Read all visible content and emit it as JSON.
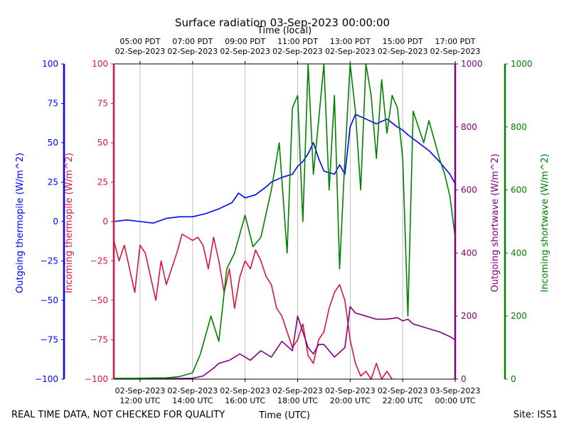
{
  "chart_data": {
    "type": "line",
    "title": "Surface radiation 03-Sep-2023 00:00:00",
    "top_axis_label": "Time (local)",
    "xlabel": "Time (UTC)",
    "footer_left": "REAL TIME DATA, NOT CHECKED FOR QUALITY",
    "footer_right": "Site: ISS1",
    "x_range_hours_utc": [
      11,
      24
    ],
    "x_ticks_bottom": [
      {
        "hour": 12,
        "line1": "02-Sep-2023",
        "line2": "12:00 UTC"
      },
      {
        "hour": 14,
        "line1": "02-Sep-2023",
        "line2": "14:00 UTC"
      },
      {
        "hour": 16,
        "line1": "02-Sep-2023",
        "line2": "16:00 UTC"
      },
      {
        "hour": 18,
        "line1": "02-Sep-2023",
        "line2": "18:00 UTC"
      },
      {
        "hour": 20,
        "line1": "02-Sep-2023",
        "line2": "20:00 UTC"
      },
      {
        "hour": 22,
        "line1": "02-Sep-2023",
        "line2": "22:00 UTC"
      },
      {
        "hour": 24,
        "line1": "03-Sep-2023",
        "line2": "00:00 UTC"
      }
    ],
    "x_ticks_top": [
      {
        "hour": 12,
        "line1": "05:00 PDT",
        "line2": "02-Sep-2023"
      },
      {
        "hour": 14,
        "line1": "07:00 PDT",
        "line2": "02-Sep-2023"
      },
      {
        "hour": 16,
        "line1": "09:00 PDT",
        "line2": "02-Sep-2023"
      },
      {
        "hour": 18,
        "line1": "11:00 PDT",
        "line2": "02-Sep-2023"
      },
      {
        "hour": 20,
        "line1": "13:00 PDT",
        "line2": "02-Sep-2023"
      },
      {
        "hour": 22,
        "line1": "15:00 PDT",
        "line2": "02-Sep-2023"
      },
      {
        "hour": 24,
        "line1": "17:00 PDT",
        "line2": "02-Sep-2023"
      }
    ],
    "axes": [
      {
        "id": "out_thermo",
        "label": "Outgoing thermopile (W/m^2)",
        "color": "#0000ff",
        "side": "left-outer",
        "ylim": [
          -100,
          100
        ],
        "ticks": [
          "100",
          "75",
          "50",
          "25",
          "0",
          "−25",
          "−50",
          "−75",
          "−100"
        ],
        "tick_values": [
          100,
          75,
          50,
          25,
          0,
          -25,
          -50,
          -75,
          -100
        ]
      },
      {
        "id": "in_thermo",
        "label": "Incoming thermopile (W/m^2)",
        "color": "#dc143c",
        "side": "left-inner",
        "ylim": [
          -100,
          100
        ],
        "ticks": [
          "100",
          "75",
          "50",
          "25",
          "0",
          "−25",
          "−50",
          "−75",
          "−100"
        ],
        "tick_values": [
          100,
          75,
          50,
          25,
          0,
          -25,
          -50,
          -75,
          -100
        ]
      },
      {
        "id": "out_sw",
        "label": "Outgoing shortwave (W/m^2)",
        "color": "#800080",
        "side": "right-inner",
        "ylim": [
          0,
          1000
        ],
        "ticks": [
          "1000",
          "800",
          "600",
          "400",
          "200",
          "0"
        ],
        "tick_values": [
          1000,
          800,
          600,
          400,
          200,
          0
        ]
      },
      {
        "id": "in_sw",
        "label": "Incoming shortwave (W/m^2)",
        "color": "#008000",
        "side": "right-outer",
        "ylim": [
          0,
          1000
        ],
        "ticks": [
          "1000",
          "800",
          "600",
          "400",
          "200",
          "0"
        ],
        "tick_values": [
          1000,
          800,
          600,
          400,
          200,
          0
        ]
      }
    ],
    "series": [
      {
        "name": "Outgoing thermopile",
        "axis": "out_thermo",
        "color": "#0000ff",
        "x": [
          11.0,
          11.5,
          12.0,
          12.5,
          13.0,
          13.5,
          14.0,
          14.5,
          15.0,
          15.5,
          15.75,
          16.0,
          16.4,
          16.8,
          17.0,
          17.4,
          17.8,
          18.0,
          18.2,
          18.4,
          18.6,
          18.8,
          19.0,
          19.4,
          19.6,
          19.8,
          20.0,
          20.2,
          20.6,
          21.0,
          21.4,
          21.8,
          22.0,
          22.2,
          22.6,
          23.0,
          23.4,
          23.8,
          24.0
        ],
        "y": [
          0,
          1,
          0,
          -1,
          2,
          3,
          3,
          5,
          8,
          12,
          18,
          15,
          17,
          22,
          25,
          28,
          30,
          35,
          38,
          43,
          50,
          40,
          32,
          30,
          36,
          30,
          60,
          68,
          65,
          62,
          65,
          60,
          58,
          55,
          50,
          45,
          38,
          30,
          24
        ]
      },
      {
        "name": "Incoming thermopile",
        "axis": "in_thermo",
        "color": "#dc143c",
        "x": [
          11.0,
          11.2,
          11.4,
          11.6,
          11.8,
          12.0,
          12.2,
          12.4,
          12.6,
          12.8,
          13.0,
          13.2,
          13.4,
          13.6,
          13.8,
          14.0,
          14.2,
          14.4,
          14.6,
          14.8,
          15.0,
          15.2,
          15.4,
          15.6,
          15.8,
          16.0,
          16.2,
          16.4,
          16.6,
          16.8,
          17.0,
          17.2,
          17.4,
          17.6,
          17.8,
          18.0,
          18.2,
          18.4,
          18.6,
          18.8,
          19.0,
          19.2,
          19.4,
          19.6,
          19.8,
          20.0,
          20.2,
          20.4,
          20.6,
          20.8,
          21.0,
          21.2,
          21.4,
          21.6
        ],
        "y": [
          -12,
          -25,
          -15,
          -30,
          -45,
          -15,
          -20,
          -35,
          -50,
          -25,
          -40,
          -30,
          -20,
          -8,
          -10,
          -12,
          -10,
          -15,
          -30,
          -10,
          -25,
          -45,
          -30,
          -55,
          -35,
          -25,
          -30,
          -18,
          -25,
          -35,
          -40,
          -55,
          -60,
          -70,
          -80,
          -75,
          -65,
          -85,
          -90,
          -75,
          -70,
          -55,
          -45,
          -40,
          -50,
          -75,
          -90,
          -98,
          -95,
          -100,
          -90,
          -100,
          -95,
          -100
        ]
      },
      {
        "name": "Outgoing shortwave",
        "axis": "out_sw",
        "color": "#800080",
        "x": [
          11.0,
          12.0,
          13.0,
          13.5,
          14.0,
          14.4,
          14.8,
          15.0,
          15.4,
          15.8,
          16.2,
          16.6,
          17.0,
          17.4,
          17.8,
          18.0,
          18.2,
          18.4,
          18.6,
          18.8,
          19.0,
          19.4,
          19.8,
          20.0,
          20.2,
          20.6,
          21.0,
          21.4,
          21.8,
          22.0,
          22.2,
          22.4,
          22.6,
          23.0,
          23.4,
          23.8,
          24.0
        ],
        "y": [
          2,
          2,
          2,
          2,
          3,
          10,
          35,
          50,
          60,
          80,
          60,
          90,
          70,
          120,
          90,
          200,
          150,
          100,
          80,
          110,
          110,
          70,
          100,
          230,
          210,
          200,
          190,
          190,
          195,
          185,
          190,
          175,
          170,
          160,
          150,
          135,
          125
        ]
      },
      {
        "name": "Incoming shortwave",
        "axis": "in_sw",
        "color": "#008000",
        "x": [
          11.0,
          12.0,
          13.0,
          13.5,
          14.0,
          14.3,
          14.7,
          15.0,
          15.3,
          15.6,
          16.0,
          16.3,
          16.6,
          17.0,
          17.3,
          17.6,
          17.8,
          18.0,
          18.2,
          18.4,
          18.6,
          18.8,
          19.0,
          19.2,
          19.4,
          19.6,
          19.8,
          20.0,
          20.2,
          20.4,
          20.6,
          20.8,
          21.0,
          21.2,
          21.4,
          21.6,
          21.8,
          22.0,
          22.2,
          22.4,
          22.6,
          22.8,
          23.0,
          23.2,
          23.4,
          23.6,
          23.8,
          24.0
        ],
        "y": [
          2,
          3,
          4,
          8,
          20,
          80,
          200,
          120,
          350,
          400,
          520,
          420,
          450,
          600,
          750,
          400,
          860,
          900,
          500,
          1000,
          650,
          820,
          1000,
          600,
          900,
          350,
          700,
          1000,
          850,
          600,
          1000,
          900,
          700,
          950,
          780,
          900,
          860,
          700,
          200,
          850,
          800,
          750,
          820,
          760,
          700,
          650,
          580,
          450
        ]
      }
    ]
  }
}
